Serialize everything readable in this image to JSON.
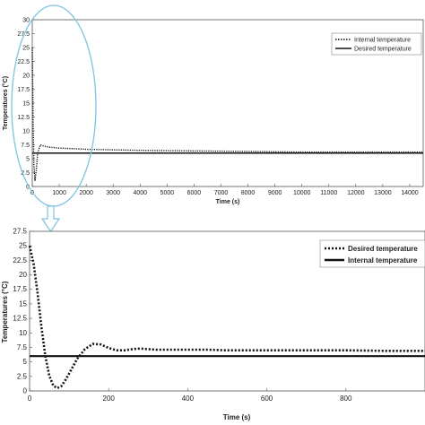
{
  "chart_data": [
    {
      "type": "line",
      "xlabel": "Time (s)",
      "ylabel": "Temperatures (°C)",
      "xlim": [
        0,
        14500
      ],
      "ylim": [
        0,
        30
      ],
      "x_ticks": [
        "0",
        "1000",
        "2000",
        "3000",
        "4000",
        "5000",
        "6000",
        "7000",
        "8000",
        "9000",
        "10000",
        "11000",
        "12000",
        "13000",
        "14000"
      ],
      "y_ticks": [
        "0",
        "2.5",
        "5",
        "7.5",
        "10",
        "12.5",
        "15",
        "17.5",
        "20",
        "22.5",
        "25",
        "27.5",
        "30"
      ],
      "legend_position": "top-right",
      "series": [
        {
          "name": "Internal temperature",
          "style": "dotted",
          "x": [
            0,
            30,
            60,
            100,
            150,
            200,
            300,
            400,
            600,
            800,
            1000,
            1500,
            2000,
            3000,
            4000,
            6000,
            8000,
            10000,
            12000,
            14500
          ],
          "y": [
            25,
            12,
            4,
            1,
            3,
            6,
            7.5,
            7.3,
            7.1,
            7.0,
            6.9,
            6.8,
            6.7,
            6.6,
            6.5,
            6.4,
            6.3,
            6.2,
            6.2,
            6.2
          ]
        },
        {
          "name": "Desired temperature",
          "style": "solid",
          "x": [
            0,
            14500
          ],
          "y": [
            6,
            6
          ]
        }
      ]
    },
    {
      "type": "line",
      "xlabel": "Time (s)",
      "ylabel": "Temperatures (°C)",
      "xlim": [
        0,
        1000
      ],
      "ylim": [
        0,
        27.5
      ],
      "x_ticks": [
        "0",
        "200",
        "400",
        "600",
        "800"
      ],
      "y_ticks": [
        "0",
        "2.5",
        "5",
        "7.5",
        "10",
        "12.5",
        "15",
        "17.5",
        "20",
        "22.5",
        "25",
        "27.5"
      ],
      "legend_position": "top-right",
      "series": [
        {
          "name": "Desired temperature",
          "style": "dotted",
          "x": [
            0,
            10,
            20,
            30,
            40,
            50,
            60,
            70,
            80,
            90,
            100,
            120,
            140,
            160,
            180,
            200,
            220,
            240,
            260,
            280,
            300,
            320,
            350,
            400,
            450,
            500,
            600,
            700,
            800,
            900,
            1000
          ],
          "y": [
            25,
            22,
            17,
            11,
            6,
            2.6,
            0.9,
            0.5,
            0.8,
            1.8,
            3,
            5.5,
            7.2,
            8.1,
            8.0,
            7.4,
            7.0,
            7.0,
            7.2,
            7.3,
            7.2,
            7.1,
            7.1,
            7.1,
            7.1,
            7.0,
            7.0,
            7.0,
            7.0,
            6.9,
            6.9
          ]
        },
        {
          "name": "Internal temperature",
          "style": "solid",
          "x": [
            0,
            1000
          ],
          "y": [
            6,
            6
          ]
        }
      ]
    }
  ]
}
